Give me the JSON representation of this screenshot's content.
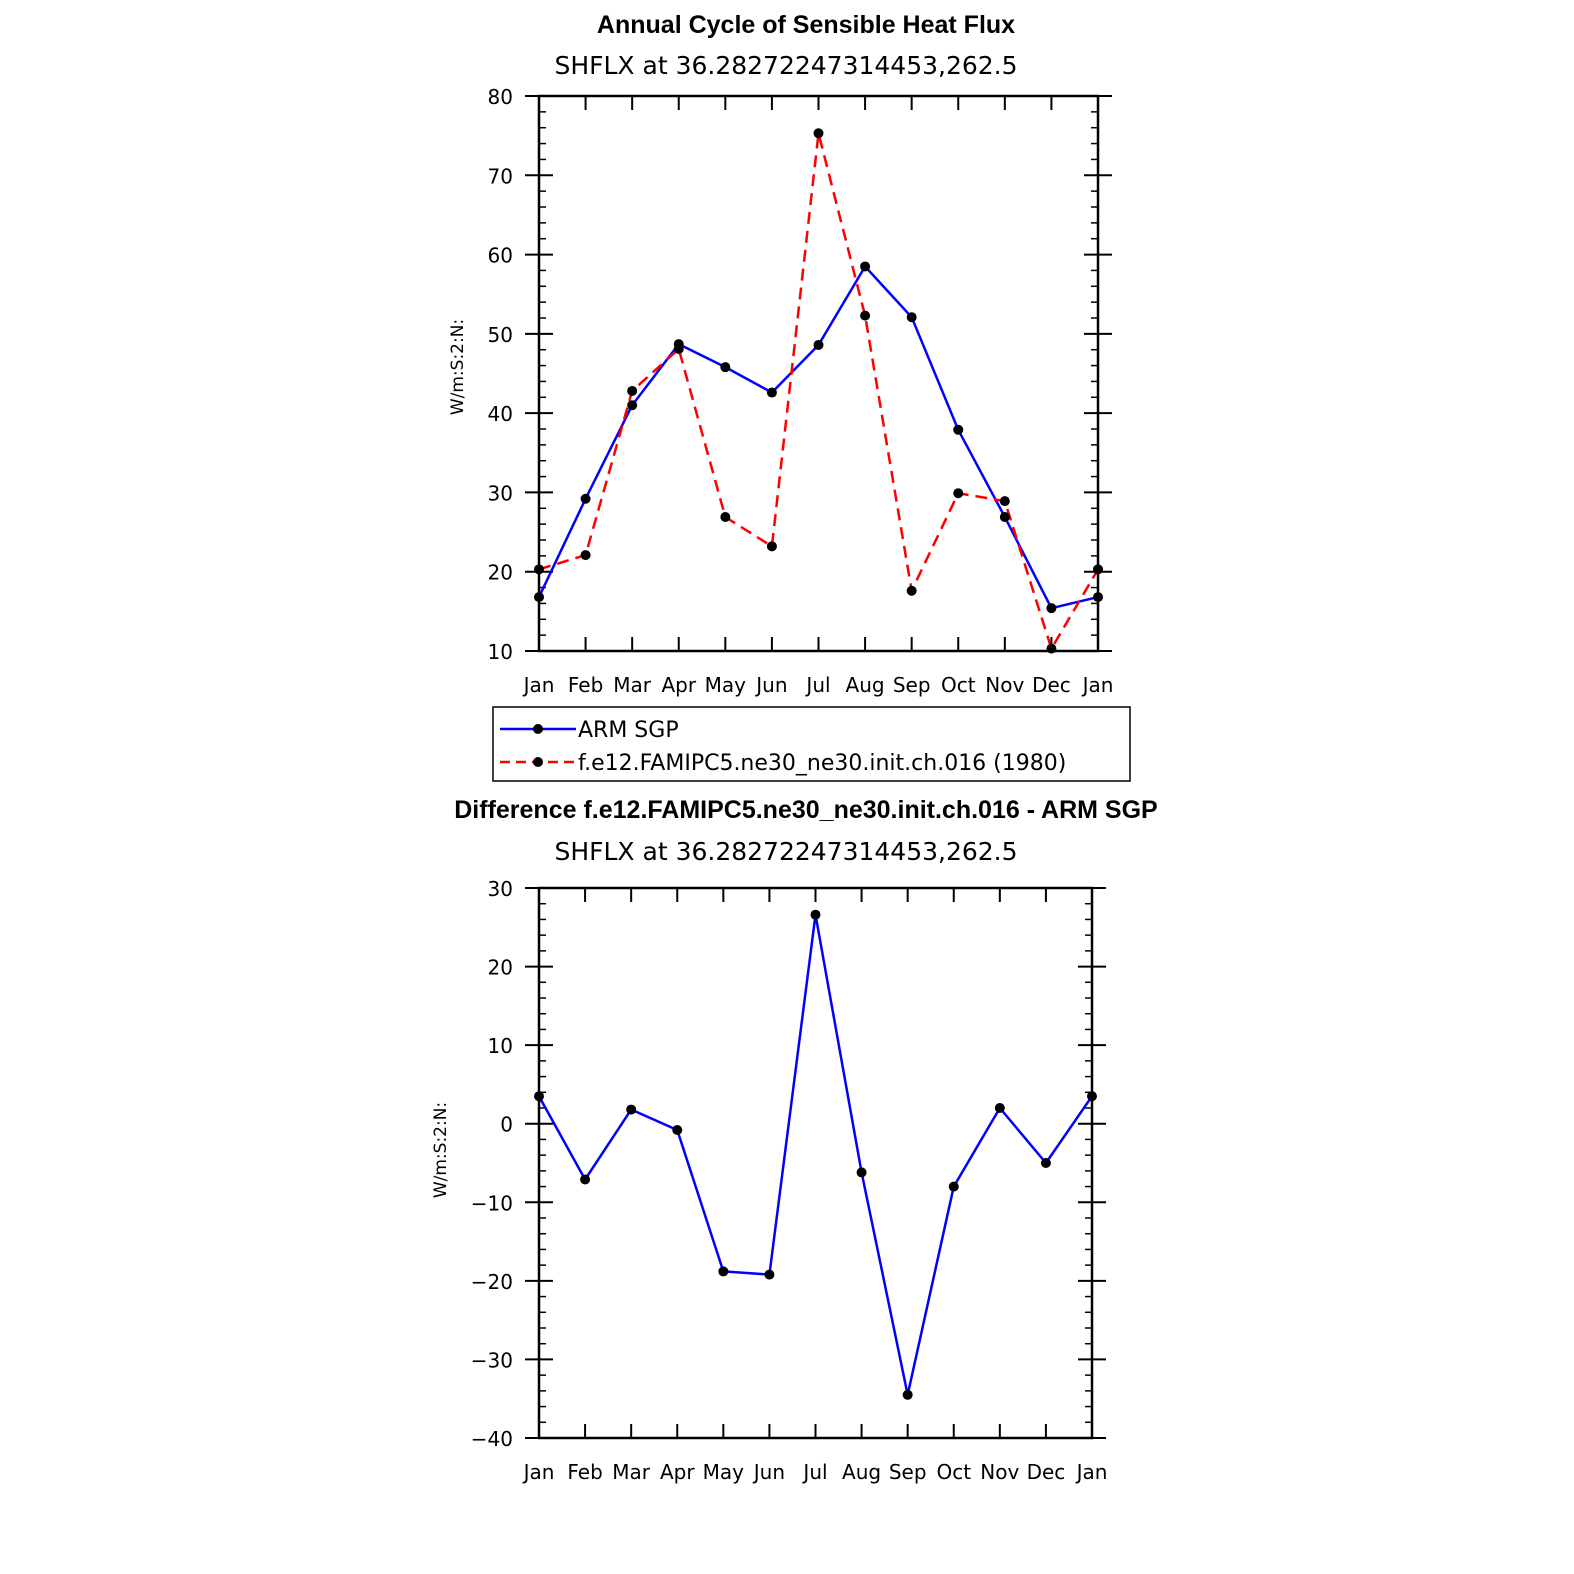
{
  "chart_data": [
    {
      "type": "line",
      "title": "Annual Cycle of Sensible Heat Flux",
      "subtitle": "SHFLX at 36.28272247314453,262.5",
      "xlabel": "",
      "ylabel": "W/m:S:2:N:",
      "categories": [
        "Jan",
        "Feb",
        "Mar",
        "Apr",
        "May",
        "Jun",
        "Jul",
        "Aug",
        "Sep",
        "Oct",
        "Nov",
        "Dec",
        "Jan"
      ],
      "ylim": [
        10,
        80
      ],
      "yticks": [
        10,
        20,
        30,
        40,
        50,
        60,
        70,
        80
      ],
      "grid": false,
      "series": [
        {
          "name": "ARM SGP",
          "color": "#0000ff",
          "dash": "solid",
          "values": [
            16.8,
            29.2,
            41.0,
            48.7,
            45.8,
            42.6,
            48.6,
            58.5,
            52.1,
            37.9,
            26.9,
            15.4,
            16.8
          ]
        },
        {
          "name": "f.e12.FAMIPC5.ne30_ne30.init.ch.016 (1980)",
          "color": "#ff0000",
          "dash": "dashed",
          "values": [
            20.3,
            22.1,
            42.8,
            48.1,
            26.9,
            23.2,
            75.3,
            52.3,
            17.6,
            29.9,
            28.9,
            10.3,
            20.3
          ]
        }
      ],
      "legend": {
        "placement": "bottom",
        "entries": [
          "ARM SGP",
          "f.e12.FAMIPC5.ne30_ne30.init.ch.016 (1980)"
        ]
      }
    },
    {
      "type": "line",
      "title": "Difference f.e12.FAMIPC5.ne30_ne30.init.ch.016 - ARM SGP",
      "subtitle": "SHFLX at 36.28272247314453,262.5",
      "xlabel": "",
      "ylabel": "W/m:S:2:N:",
      "categories": [
        "Jan",
        "Feb",
        "Mar",
        "Apr",
        "May",
        "Jun",
        "Jul",
        "Aug",
        "Sep",
        "Oct",
        "Nov",
        "Dec",
        "Jan"
      ],
      "ylim": [
        -40,
        30
      ],
      "yticks": [
        -40,
        -30,
        -20,
        -10,
        0,
        10,
        20,
        30
      ],
      "grid": false,
      "series": [
        {
          "name": "Difference",
          "color": "#0000ff",
          "dash": "solid",
          "values": [
            3.5,
            -7.1,
            1.8,
            -0.8,
            -18.8,
            -19.2,
            26.6,
            -6.2,
            -34.5,
            -8.0,
            2.0,
            -5.0,
            3.5
          ]
        }
      ]
    }
  ]
}
